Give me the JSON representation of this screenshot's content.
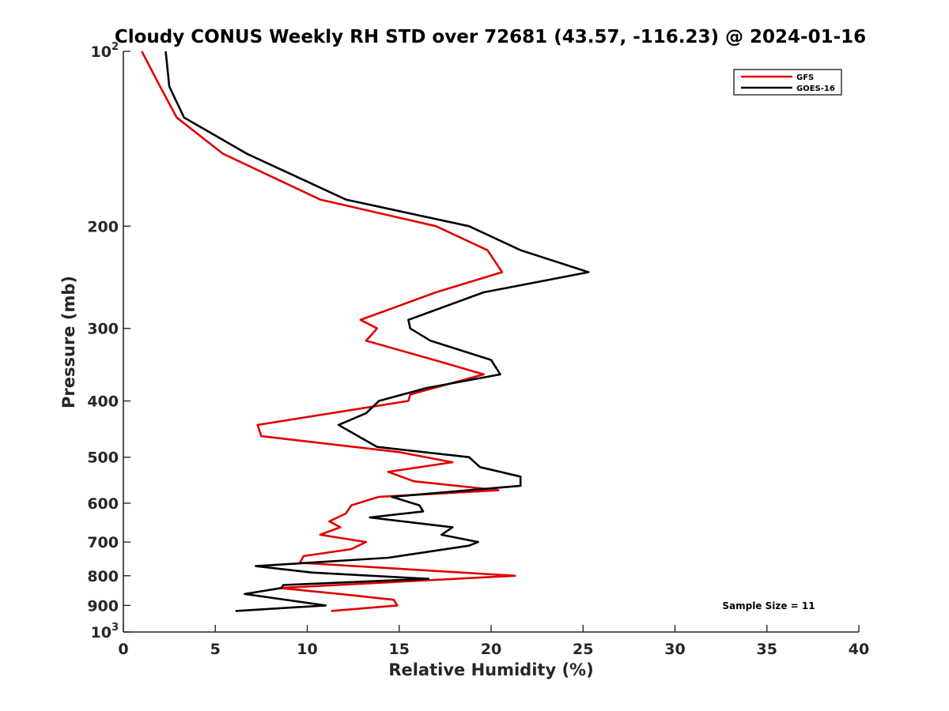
{
  "chart_data": {
    "type": "line",
    "title": "Cloudy CONUS Weekly RH STD over 72681 (43.57, -116.23) @ 2024-01-16",
    "xlabel": "Relative Humidity (%)",
    "ylabel": "Pressure (mb)",
    "xlim": [
      0,
      40
    ],
    "ylim": [
      100,
      1000
    ],
    "y_scale": "log",
    "y_reversed": true,
    "xticks": [
      "0",
      "5",
      "10",
      "15",
      "20",
      "25",
      "30",
      "35",
      "40"
    ],
    "xtick_values": [
      0,
      5,
      10,
      15,
      20,
      25,
      30,
      35,
      40
    ],
    "yticks": [
      {
        "value": 100,
        "base": "10",
        "exp": "2"
      },
      {
        "value": 200,
        "label": "200"
      },
      {
        "value": 300,
        "label": "300"
      },
      {
        "value": 400,
        "label": "400"
      },
      {
        "value": 500,
        "label": "500"
      },
      {
        "value": 600,
        "label": "600"
      },
      {
        "value": 700,
        "label": "700"
      },
      {
        "value": 800,
        "label": "800"
      },
      {
        "value": 900,
        "label": "900"
      },
      {
        "value": 1000,
        "base": "10",
        "exp": "3"
      }
    ],
    "grid": false,
    "legend_position": "top-right",
    "annotation": "Sample Size = 11",
    "series": [
      {
        "name": "GFS",
        "color": "#e00000",
        "points": [
          [
            1.0,
            100
          ],
          [
            2.0,
            115
          ],
          [
            2.9,
            130
          ],
          [
            5.4,
            150
          ],
          [
            10.7,
            180
          ],
          [
            17.0,
            200
          ],
          [
            19.8,
            220
          ],
          [
            20.6,
            240
          ],
          [
            17.0,
            260
          ],
          [
            12.9,
            290
          ],
          [
            13.8,
            300
          ],
          [
            13.2,
            315
          ],
          [
            16.9,
            340
          ],
          [
            19.6,
            360
          ],
          [
            15.6,
            390
          ],
          [
            15.5,
            400
          ],
          [
            7.3,
            440
          ],
          [
            7.5,
            460
          ],
          [
            15.0,
            490
          ],
          [
            17.9,
            510
          ],
          [
            14.4,
            530
          ],
          [
            15.8,
            550
          ],
          [
            20.4,
            570
          ],
          [
            13.9,
            585
          ],
          [
            12.4,
            605
          ],
          [
            12.1,
            625
          ],
          [
            11.2,
            645
          ],
          [
            11.8,
            660
          ],
          [
            10.7,
            680
          ],
          [
            13.2,
            700
          ],
          [
            12.4,
            720
          ],
          [
            9.8,
            740
          ],
          [
            9.6,
            760
          ],
          [
            21.3,
            800
          ],
          [
            8.5,
            840
          ],
          [
            11.8,
            860
          ],
          [
            14.7,
            880
          ],
          [
            14.9,
            900
          ],
          [
            11.3,
            920
          ]
        ]
      },
      {
        "name": "GOES-16",
        "color": "#000000",
        "points": [
          [
            2.3,
            100
          ],
          [
            2.5,
            115
          ],
          [
            3.3,
            130
          ],
          [
            6.7,
            150
          ],
          [
            12.1,
            180
          ],
          [
            18.8,
            200
          ],
          [
            21.6,
            220
          ],
          [
            25.3,
            240
          ],
          [
            19.6,
            260
          ],
          [
            15.5,
            290
          ],
          [
            15.6,
            300
          ],
          [
            16.7,
            315
          ],
          [
            20.0,
            340
          ],
          [
            20.5,
            360
          ],
          [
            16.5,
            380
          ],
          [
            13.9,
            400
          ],
          [
            13.2,
            420
          ],
          [
            11.7,
            440
          ],
          [
            13.8,
            480
          ],
          [
            18.8,
            500
          ],
          [
            19.4,
            520
          ],
          [
            21.6,
            540
          ],
          [
            21.6,
            560
          ],
          [
            14.6,
            585
          ],
          [
            16.1,
            605
          ],
          [
            16.3,
            620
          ],
          [
            13.4,
            635
          ],
          [
            17.9,
            660
          ],
          [
            17.3,
            680
          ],
          [
            19.3,
            700
          ],
          [
            18.8,
            710
          ],
          [
            14.4,
            745
          ],
          [
            7.2,
            770
          ],
          [
            10.3,
            790
          ],
          [
            16.6,
            810
          ],
          [
            8.7,
            830
          ],
          [
            8.6,
            840
          ],
          [
            6.6,
            860
          ],
          [
            11.0,
            900
          ],
          [
            6.1,
            920
          ]
        ]
      }
    ]
  }
}
